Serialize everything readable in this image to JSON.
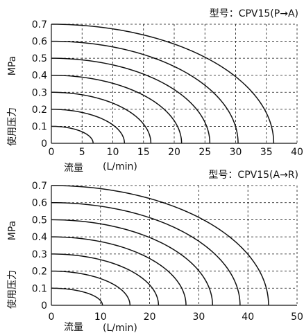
{
  "chart_data": [
    {
      "type": "line",
      "title": "型号：CPV15(P→A)",
      "xlabel": "流量",
      "xunit": "(L/min)",
      "ylabel_unit": "MPa",
      "ylabel": "使用压力",
      "xlim": [
        0,
        40
      ],
      "ylim": [
        0,
        0.7
      ],
      "xticks": [
        "0",
        "5",
        "10",
        "15",
        "20",
        "25",
        "30",
        "35",
        "40"
      ],
      "yticks": [
        "0",
        "0.1",
        "0.2",
        "0.3",
        "0.4",
        "0.5",
        "0.6",
        "0.7"
      ],
      "grid": true,
      "series": [
        {
          "pressure": 0.1,
          "max_flow": 6.8
        },
        {
          "pressure": 0.2,
          "max_flow": 11.9
        },
        {
          "pressure": 0.3,
          "max_flow": 16.2
        },
        {
          "pressure": 0.4,
          "max_flow": 21.2
        },
        {
          "pressure": 0.5,
          "max_flow": 25.8
        },
        {
          "pressure": 0.6,
          "max_flow": 30.4
        },
        {
          "pressure": 0.7,
          "max_flow": 36.2
        }
      ]
    },
    {
      "type": "line",
      "title": "型号：CPV15(A→R)",
      "xlabel": "流量",
      "xunit": "(L/min)",
      "ylabel_unit": "MPa",
      "ylabel": "使用压力",
      "xlim": [
        0,
        50
      ],
      "ylim": [
        0,
        0.7
      ],
      "xticks": [
        "0",
        "10",
        "20",
        "30",
        "40",
        "50"
      ],
      "yticks": [
        "0",
        "0.1",
        "0.2",
        "0.3",
        "0.4",
        "0.5",
        "0.6",
        "0.7"
      ],
      "grid": true,
      "series": [
        {
          "pressure": 0.1,
          "max_flow": 10.4
        },
        {
          "pressure": 0.2,
          "max_flow": 16.0
        },
        {
          "pressure": 0.3,
          "max_flow": 21.8
        },
        {
          "pressure": 0.4,
          "max_flow": 27.4
        },
        {
          "pressure": 0.5,
          "max_flow": 32.8
        },
        {
          "pressure": 0.6,
          "max_flow": 38.4
        },
        {
          "pressure": 0.7,
          "max_flow": 44.2
        }
      ]
    }
  ]
}
